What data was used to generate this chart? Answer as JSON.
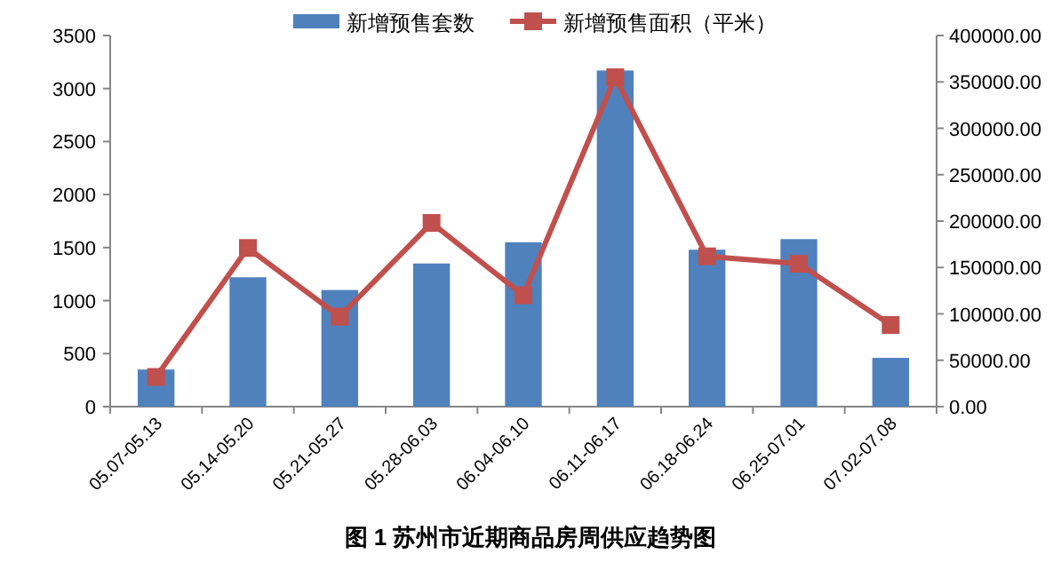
{
  "chart_data": {
    "type": "bar",
    "title": "图 1  苏州市近期商品房周供应趋势图",
    "categories": [
      "05.07-05.13",
      "05.14-05.20",
      "05.21-05.27",
      "05.28-06.03",
      "06.04-06.10",
      "06.11-06.17",
      "06.18-06.24",
      "06.25-07.01",
      "07.02-07.08"
    ],
    "series": [
      {
        "name": "新增预售套数",
        "color": "#4f81bd",
        "values": [
          350,
          1220,
          1100,
          1350,
          1550,
          3170,
          1480,
          1580,
          460
        ]
      },
      {
        "name": "新增预售面积（平米）",
        "type": "line",
        "axis": "y2",
        "color": "#c0504d",
        "values": [
          32000,
          171000,
          97000,
          198000,
          120000,
          355000,
          162000,
          154000,
          88000
        ]
      }
    ],
    "ylim": [
      0,
      3500
    ],
    "yticks": [
      0,
      500,
      1000,
      1500,
      2000,
      2500,
      3000,
      3500
    ],
    "y2lim": [
      0,
      400000
    ],
    "y2ticks": [
      {
        "value": 0,
        "label": "0.00"
      },
      {
        "value": 50000,
        "label": "50000.00"
      },
      {
        "value": 100000,
        "label": "100000.00"
      },
      {
        "value": 150000,
        "label": "150000.00"
      },
      {
        "value": 200000,
        "label": "200000.00"
      },
      {
        "value": 250000,
        "label": "250000.00"
      },
      {
        "value": 300000,
        "label": "300000.00"
      },
      {
        "value": 350000,
        "label": "350000.00"
      },
      {
        "value": 400000,
        "label": "400000.00"
      }
    ],
    "legend": "top",
    "marker": "square",
    "grid": false
  }
}
